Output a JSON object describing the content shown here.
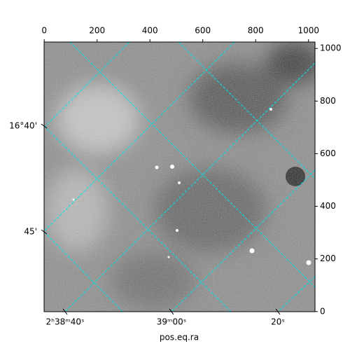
{
  "chart_data": {
    "type": "image",
    "xlabel": "pos.eq.ra",
    "xlim": [
      -0.5,
      1024.5
    ],
    "xticks": [
      0,
      200,
      400,
      600,
      800,
      1000
    ],
    "ylim": [
      -0.5,
      1024.5
    ],
    "yticks": [
      0,
      200,
      400,
      600,
      800,
      1000
    ],
    "ra_ticks": [
      {
        "value": 40,
        "label": "2ʰ38ᵐ40ˢ"
      },
      {
        "value": 60,
        "label": "39ᵐ00ˢ"
      },
      {
        "value": 80,
        "label": "20ˢ"
      }
    ],
    "dec_ticks": [
      {
        "value": 40,
        "label": "16°40'"
      },
      {
        "value": 45,
        "label": "45'"
      }
    ],
    "grid_color": "#00e5e5",
    "grid": true
  }
}
